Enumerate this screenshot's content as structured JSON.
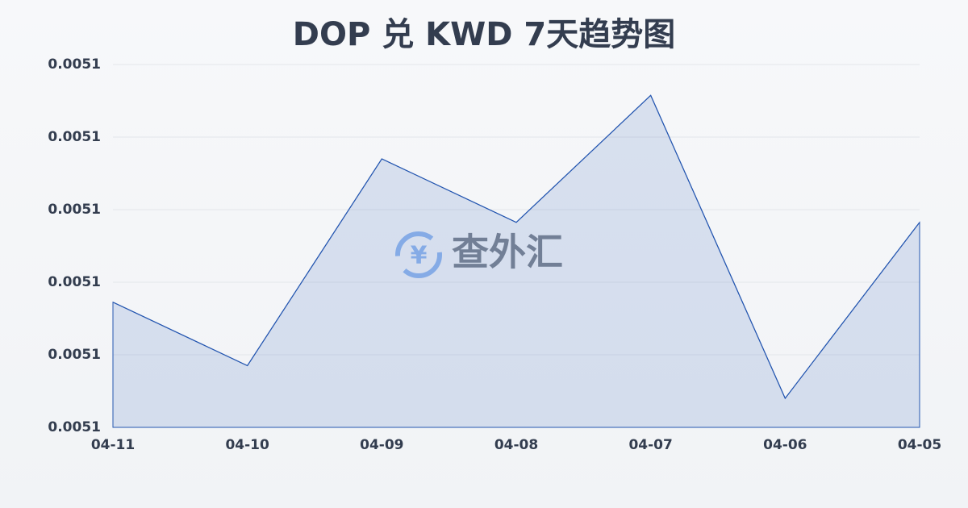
{
  "chart_data": {
    "type": "area",
    "title": "DOP 兑 KWD 7天趋势图",
    "watermark": "查外汇",
    "categories": [
      "04-11",
      "04-10",
      "04-09",
      "04-08",
      "04-07",
      "04-06",
      "04-05"
    ],
    "values": [
      0.0051069,
      0.0051034,
      0.0051148,
      0.0051113,
      0.0051183,
      0.0051016,
      0.0051113
    ],
    "color": "#2456b0",
    "ylim": [
      0.0051,
      0.00512
    ],
    "yticks": [
      0.0051,
      {
        "value": 0.005104,
        "label": "0.0051"
      },
      {
        "value": 0.005108,
        "label": "0.0051"
      },
      {
        "value": 0.005112,
        "label": "0.0051"
      },
      {
        "value": 0.005116,
        "label": "0.0051"
      },
      {
        "value": 0.00512,
        "label": "0.0051"
      }
    ],
    "grid": true
  }
}
